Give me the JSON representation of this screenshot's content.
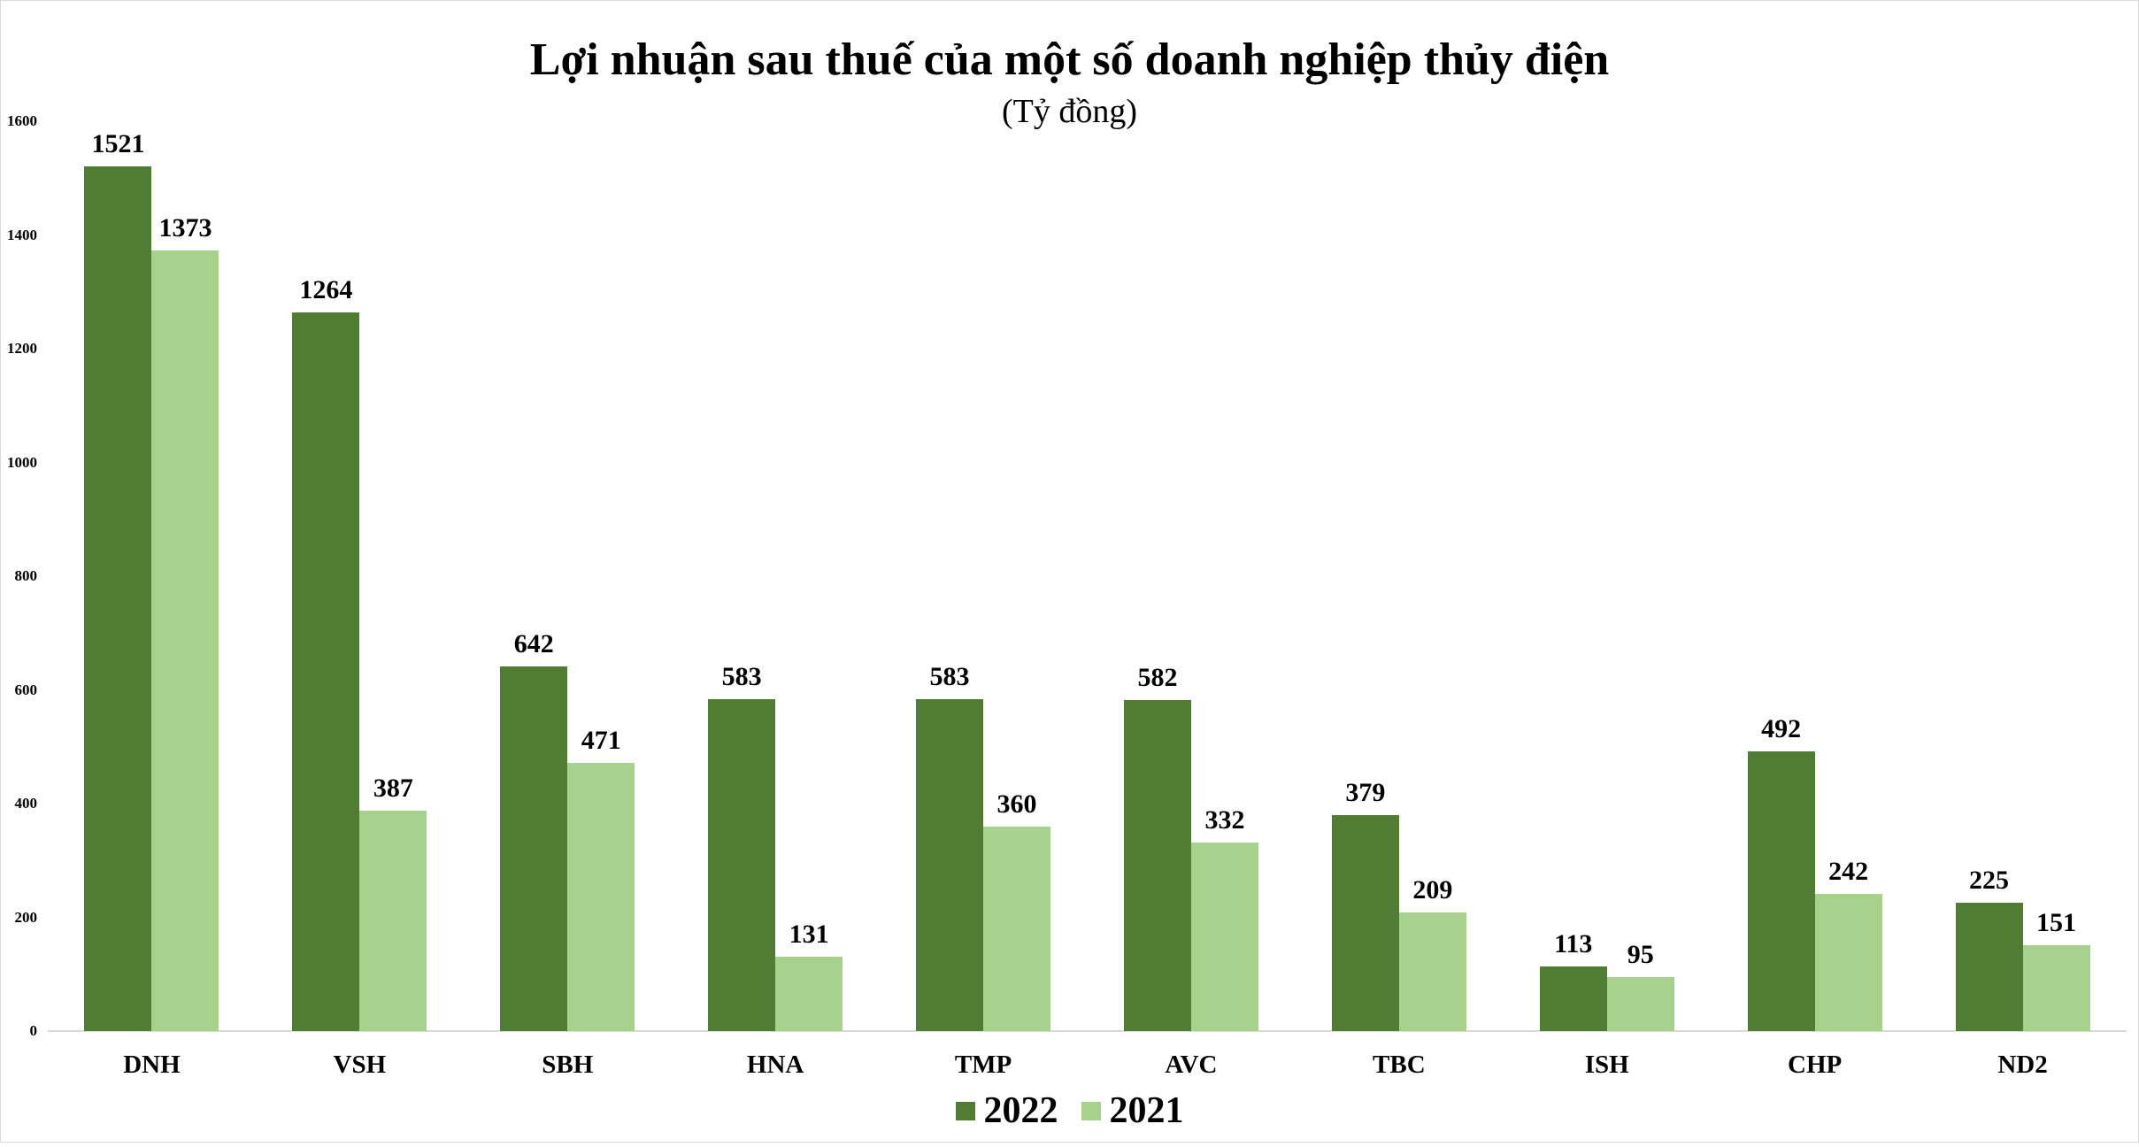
{
  "chart_data": {
    "type": "bar",
    "title": "Lợi nhuận sau thuế của một số doanh nghiệp thủy điện",
    "subtitle": "(Tỷ đồng)",
    "xlabel": "",
    "ylabel": "",
    "categories": [
      "DNH",
      "VSH",
      "SBH",
      "HNA",
      "TMP",
      "AVC",
      "TBC",
      "ISH",
      "CHP",
      "ND2"
    ],
    "series": [
      {
        "name": "2022",
        "color": "#507c34",
        "values": [
          1521,
          1264,
          642,
          583,
          583,
          582,
          379,
          113,
          492,
          225
        ]
      },
      {
        "name": "2021",
        "color": "#a9d18e",
        "values": [
          1373,
          387,
          471,
          131,
          360,
          332,
          209,
          95,
          242,
          151
        ]
      }
    ],
    "ylim": [
      0,
      1600
    ],
    "yticks": [
      0,
      200,
      400,
      600,
      800,
      1000,
      1200,
      1400,
      1600
    ],
    "grid": false,
    "data_labels": true,
    "legend_position": "bottom"
  },
  "colors": {
    "border": "#d9d9d9",
    "axis": "#d9d9d9"
  }
}
